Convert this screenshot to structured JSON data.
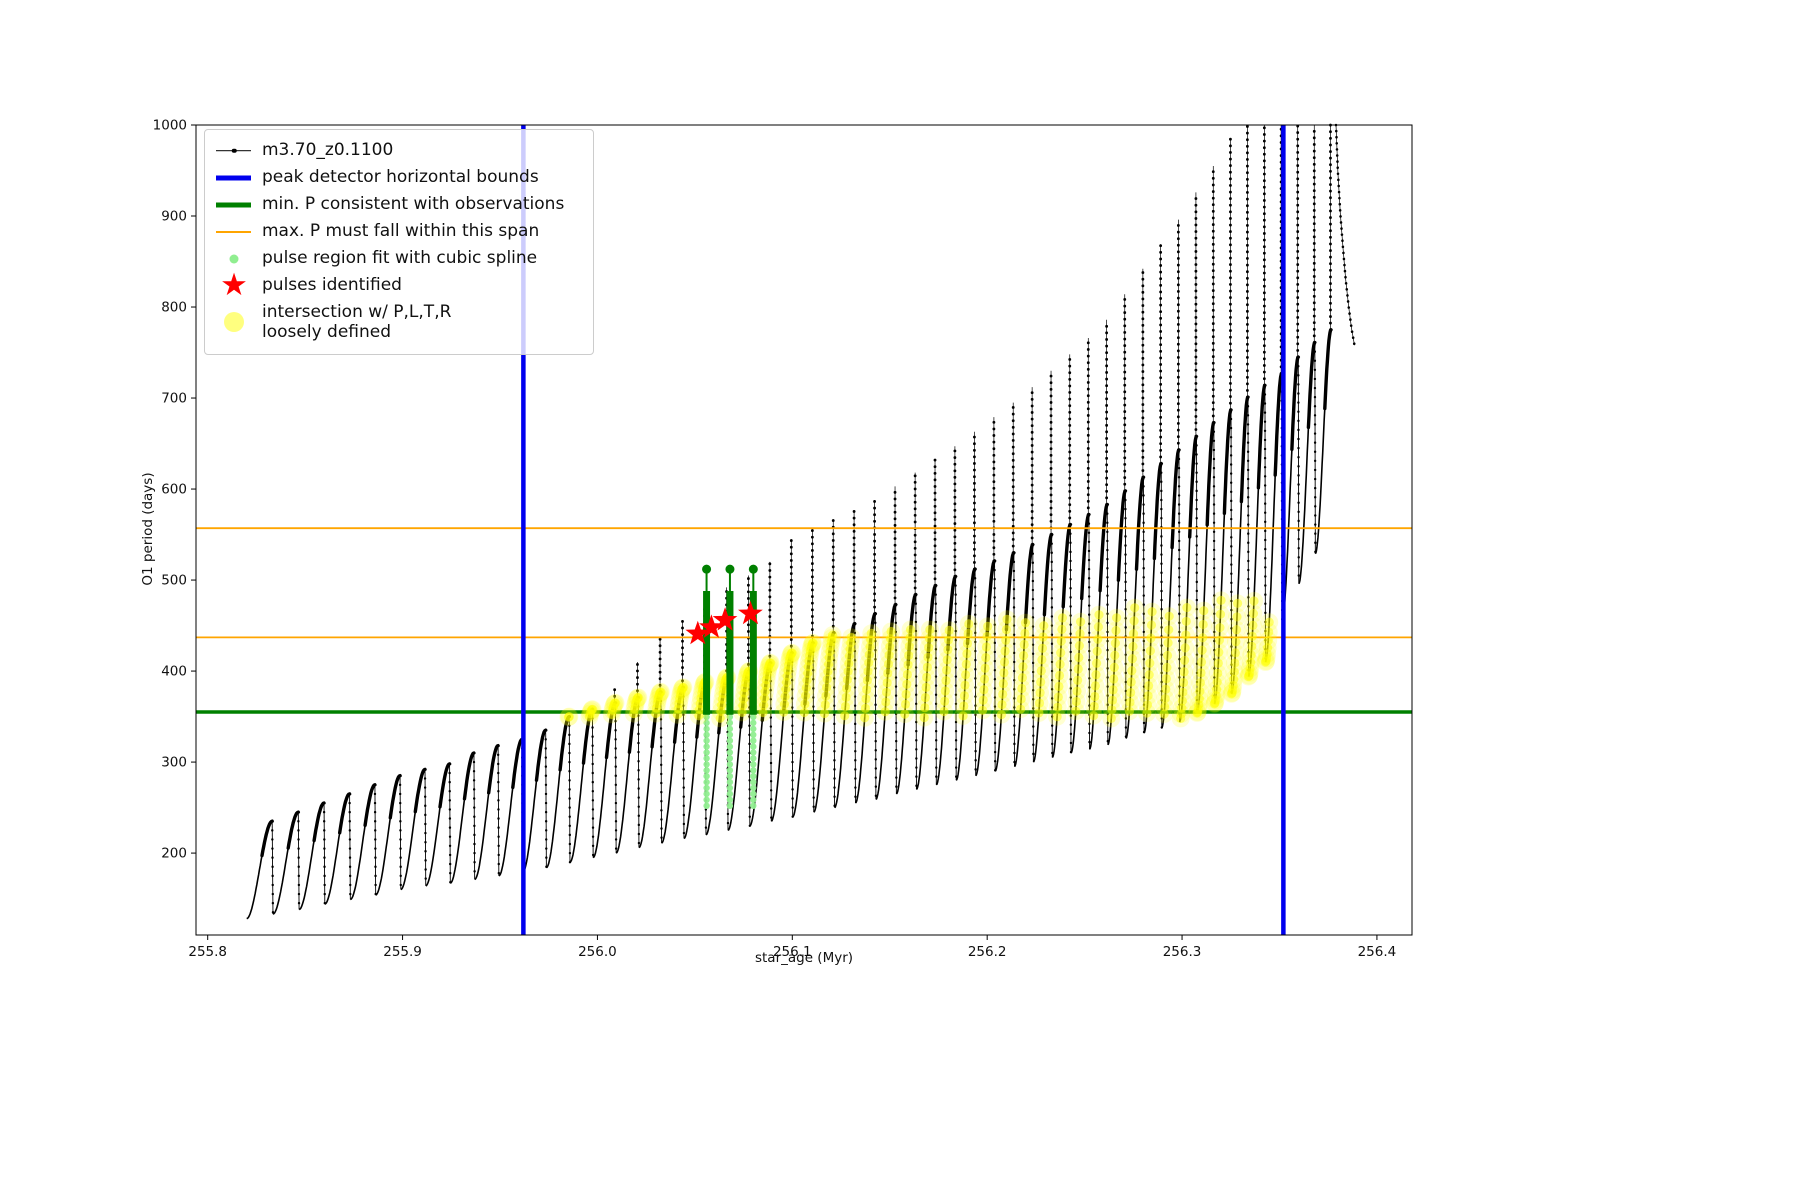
{
  "figure": {
    "background": "#ffffff"
  },
  "chart_data": {
    "type": "line",
    "title": "",
    "xlabel": "star_age (Myr)",
    "ylabel": "O1 period (days)",
    "xlim": [
      255.794,
      256.418
    ],
    "ylim": [
      110,
      1000
    ],
    "xticks": [
      "255.8",
      "255.9",
      "256.0",
      "256.1",
      "256.2",
      "256.3",
      "256.4"
    ],
    "yticks": [
      200,
      300,
      400,
      500,
      600,
      700,
      800,
      900,
      1000
    ],
    "grid": false,
    "legend": {
      "position": "upper left",
      "entries": [
        {
          "label": "m3.70_z0.1100",
          "marker": "line-dot",
          "color": "#000000"
        },
        {
          "label": "peak detector horizontal bounds",
          "marker": "line-thick",
          "color": "#0000ee"
        },
        {
          "label": "min. P consistent with observations",
          "marker": "line-thick",
          "color": "#008000"
        },
        {
          "label": "max. P must fall within this span",
          "marker": "line-thin",
          "color": "#ffa500"
        },
        {
          "label": "pulse region fit with cubic spline",
          "marker": "dot-small",
          "color": "#90ee90"
        },
        {
          "label": "pulses identified",
          "marker": "star",
          "color": "#ff0000"
        },
        {
          "label": "intersection w/ P,L,T,R\nloosely defined",
          "marker": "dot-large",
          "color": "#ffff00"
        }
      ]
    },
    "series": {
      "track": {
        "name": "m3.70_z0.1100",
        "color": "#000000",
        "cycles": [
          [
            255.82,
            255.8335,
            128,
            235,
            235
          ],
          [
            255.8335,
            255.8469,
            133,
            245,
            245
          ],
          [
            255.8469,
            255.8601,
            138,
            255,
            255
          ],
          [
            255.8601,
            255.8732,
            144,
            265,
            265
          ],
          [
            255.8732,
            255.8862,
            149,
            275,
            275
          ],
          [
            255.8862,
            255.8991,
            154,
            285,
            285
          ],
          [
            255.8991,
            255.9119,
            160,
            292,
            292
          ],
          [
            255.9119,
            255.9245,
            164,
            298,
            298
          ],
          [
            255.9245,
            255.937,
            167,
            310,
            310
          ],
          [
            255.937,
            255.9494,
            171,
            318,
            318
          ],
          [
            255.9494,
            255.9617,
            175,
            325,
            325
          ],
          [
            255.9617,
            255.9738,
            179,
            335,
            335
          ],
          [
            255.9738,
            255.9859,
            184,
            350,
            350
          ],
          [
            255.9859,
            255.9978,
            190,
            358,
            358
          ],
          [
            255.9978,
            256.0096,
            195,
            365,
            380
          ],
          [
            256.0096,
            256.0213,
            200,
            371,
            410
          ],
          [
            256.0213,
            256.0329,
            206,
            377,
            438
          ],
          [
            256.0329,
            256.0444,
            211,
            382,
            456
          ],
          [
            256.0444,
            256.0557,
            216,
            388,
            475
          ],
          [
            256.0557,
            256.067,
            220,
            393,
            492
          ],
          [
            256.067,
            256.0782,
            225,
            400,
            505
          ],
          [
            256.0782,
            256.0892,
            230,
            409,
            520
          ],
          [
            256.0892,
            256.1002,
            235,
            420,
            545
          ],
          [
            256.1002,
            256.111,
            240,
            431,
            556
          ],
          [
            256.111,
            256.1217,
            245,
            442,
            567
          ],
          [
            256.1217,
            256.1324,
            250,
            452,
            577
          ],
          [
            256.1324,
            256.1429,
            255,
            463,
            588
          ],
          [
            256.1429,
            256.1534,
            259,
            473,
            603
          ],
          [
            256.1534,
            256.1637,
            265,
            484,
            618
          ],
          [
            256.1637,
            256.1739,
            270,
            494,
            632
          ],
          [
            256.1739,
            256.1841,
            275,
            504,
            647
          ],
          [
            256.1841,
            256.1941,
            280,
            512,
            663
          ],
          [
            256.1941,
            256.2041,
            285,
            521,
            679
          ],
          [
            256.2041,
            256.214,
            290,
            530,
            695
          ],
          [
            256.214,
            256.2237,
            295,
            539,
            712
          ],
          [
            256.2237,
            256.2334,
            300,
            550,
            730
          ],
          [
            256.2334,
            256.243,
            305,
            561,
            748
          ],
          [
            256.243,
            256.2525,
            310,
            572,
            766
          ],
          [
            256.2525,
            256.2619,
            314,
            583,
            786
          ],
          [
            256.2619,
            256.2712,
            319,
            598,
            814
          ],
          [
            256.2712,
            256.2805,
            326,
            613,
            842
          ],
          [
            256.2805,
            256.2896,
            332,
            628,
            869
          ],
          [
            256.2896,
            256.2987,
            338,
            643,
            896
          ],
          [
            256.2987,
            256.3077,
            344,
            658,
            926
          ],
          [
            256.3077,
            256.3166,
            354,
            673,
            955
          ],
          [
            256.3166,
            256.3254,
            364,
            687,
            985
          ],
          [
            256.3254,
            256.3341,
            375,
            701,
            1000
          ],
          [
            256.3341,
            256.3428,
            394,
            714,
            1000
          ],
          [
            256.3428,
            256.3514,
            410,
            727,
            1000
          ],
          [
            256.3514,
            256.3599,
            457,
            745,
            1000
          ],
          [
            256.3599,
            256.3684,
            496,
            761,
            1000
          ],
          [
            256.3684,
            256.3767,
            529,
            775,
            1000
          ]
        ],
        "tail": [
          [
            256.379,
            1000
          ],
          [
            256.38,
            948
          ],
          [
            256.3812,
            903
          ],
          [
            256.3826,
            865
          ],
          [
            256.384,
            830
          ],
          [
            256.3855,
            800
          ],
          [
            256.387,
            776
          ],
          [
            256.3885,
            758
          ]
        ]
      },
      "peak_detector_bounds": {
        "type": "vlines",
        "x": [
          255.962,
          256.352
        ],
        "color": "#0000ee",
        "linewidth": 4.5
      },
      "min_period": {
        "type": "hline",
        "y": 355,
        "color": "#008000",
        "linewidth": 3.5
      },
      "max_period_span": {
        "type": "hlines",
        "y": [
          437,
          557
        ],
        "color": "#ffa500",
        "linewidth": 1.8
      },
      "pulse_region": {
        "columns_x": [
          256.056,
          256.068,
          256.08
        ],
        "dots_y_range": [
          252,
          352
        ],
        "fit_y_range": [
          352,
          512
        ],
        "dot_color": "#90ee90",
        "fit_color": "#008000"
      },
      "pulses": {
        "marker": "star",
        "color": "#ff0000",
        "points": [
          [
            256.0515,
            441
          ],
          [
            256.0585,
            448
          ],
          [
            256.0655,
            456
          ],
          [
            256.0785,
            463
          ]
        ]
      },
      "intersection_band": {
        "color": "#ffff00",
        "x_range": [
          255.97,
          256.345
        ],
        "y_min": 348,
        "y_cap": [
          [
            255.96,
            368
          ],
          [
            256.08,
            432
          ],
          [
            256.33,
            480
          ],
          [
            256.42,
            480
          ]
        ]
      }
    }
  }
}
